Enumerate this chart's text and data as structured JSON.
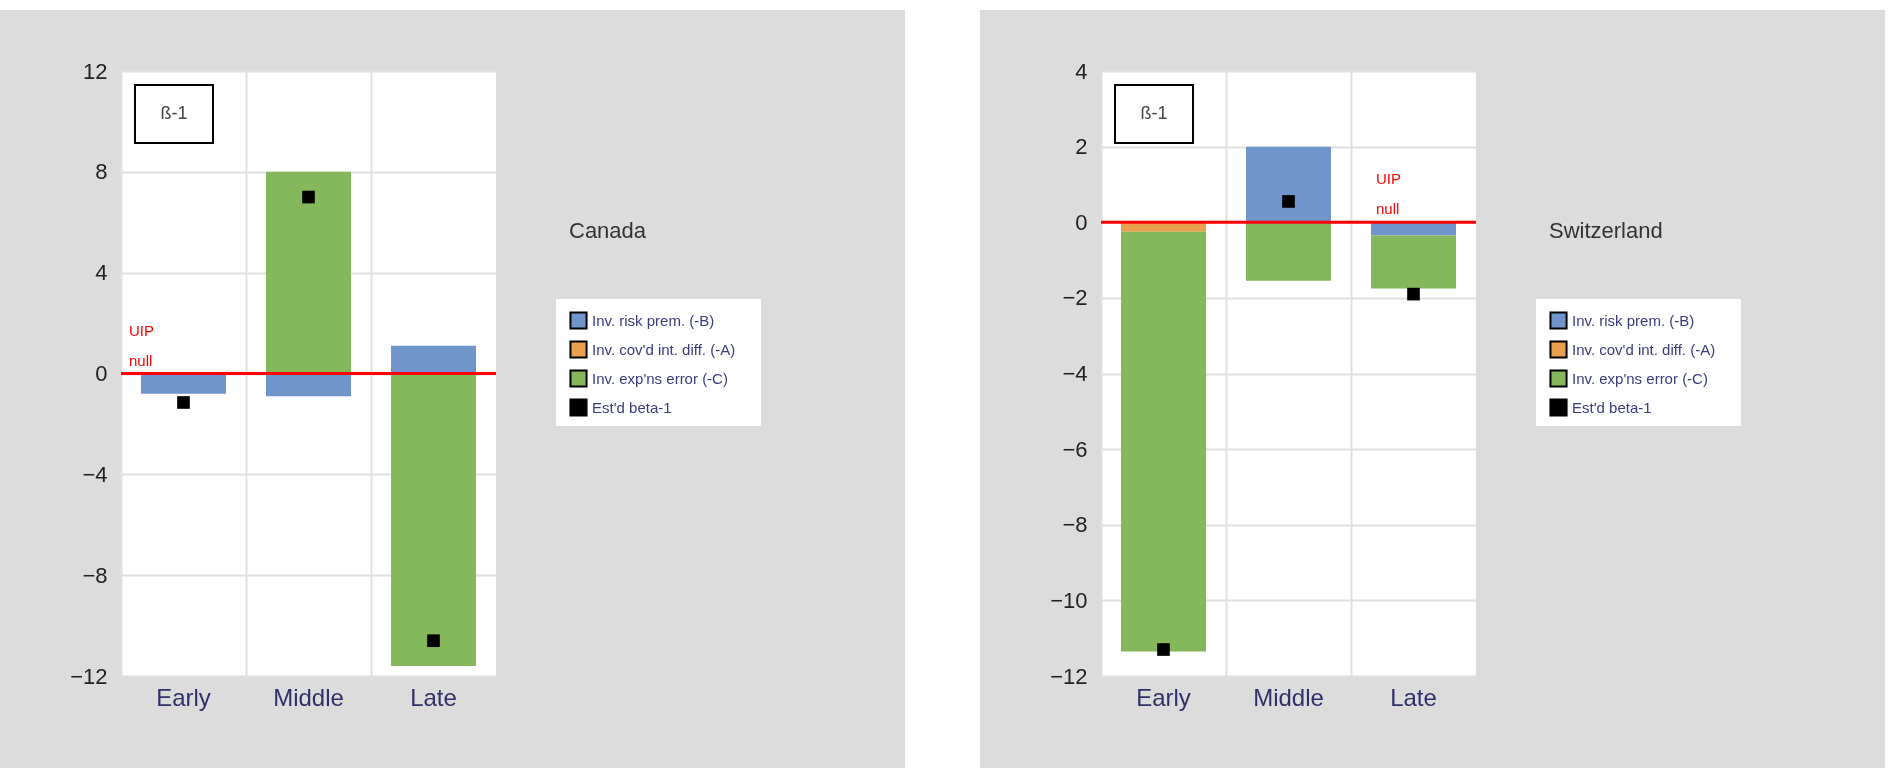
{
  "chart_data": [
    {
      "type": "bar",
      "stacked": true,
      "legend_title": "Canada",
      "categories": [
        "Early",
        "Middle",
        "Late"
      ],
      "series": [
        {
          "name": "Inv. risk prem. (-B)",
          "color": "#6f95cb",
          "values": [
            -0.8,
            -0.9,
            1.1
          ]
        },
        {
          "name": "Inv. cov'd int. diff. (-A)",
          "color": "#e8a04c",
          "values": [
            0,
            0,
            0
          ]
        },
        {
          "name": "Inv. exp'ns error (-C)",
          "color": "#84b85a",
          "values": [
            0,
            8,
            -11.6
          ]
        },
        {
          "name": "Est'd beta-1",
          "type": "scatter",
          "color": "#000000",
          "x": [
            "Early",
            "Middle",
            "Late"
          ],
          "values": [
            -1.15,
            7,
            -10.6
          ]
        }
      ],
      "ylim": [
        -12,
        12
      ],
      "yticks": [
        -12,
        -8,
        -4,
        0,
        4,
        8,
        12
      ],
      "grid": true,
      "legend": "right",
      "marker": "square",
      "ref_lines": [
        {
          "axis": "y",
          "value": 0,
          "label": "UIP null",
          "color": "#ff0000"
        }
      ],
      "annotations": [
        "ß-1"
      ]
    },
    {
      "type": "bar",
      "stacked": true,
      "legend_title": "Switzerland",
      "categories": [
        "Early",
        "Middle",
        "Late"
      ],
      "series": [
        {
          "name": "Inv. risk prem. (-B)",
          "color": "#6f95cb",
          "values": [
            0,
            2,
            -0.35
          ]
        },
        {
          "name": "Inv. cov'd int. diff. (-A)",
          "color": "#e8a04c",
          "values": [
            -0.25,
            0,
            0
          ]
        },
        {
          "name": "Inv. exp'ns error (-C)",
          "color": "#84b85a",
          "values": [
            -11.1,
            -1.55,
            -1.4
          ]
        },
        {
          "name": "Est'd beta-1",
          "type": "scatter",
          "color": "#000000",
          "x": [
            "Early",
            "Middle",
            "Late"
          ],
          "values": [
            -11.3,
            0.55,
            -1.9
          ]
        }
      ],
      "ylim": [
        -12,
        4
      ],
      "yticks": [
        -12,
        -10,
        -8,
        -6,
        -4,
        -2,
        0,
        2,
        4
      ],
      "grid": true,
      "legend": "right",
      "marker": "square",
      "ref_lines": [
        {
          "axis": "y",
          "value": 0,
          "label": "UIP null",
          "color": "#ff0000"
        }
      ],
      "annotations": [
        "ß-1"
      ]
    }
  ]
}
